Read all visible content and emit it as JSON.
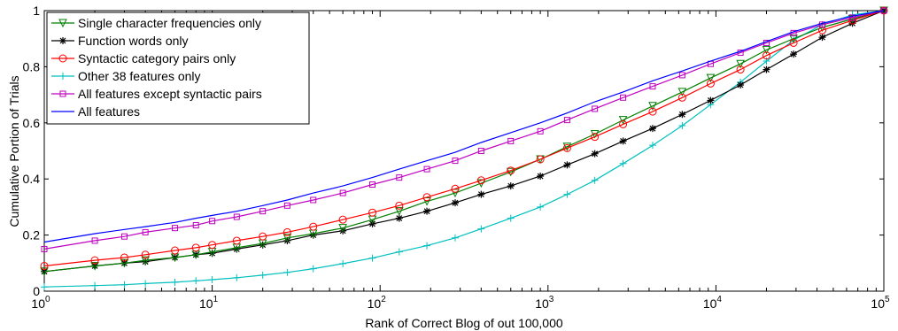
{
  "chart_data": {
    "type": "line",
    "title": "",
    "xlabel": "Rank of Correct Blog of out 100,000",
    "ylabel": "Cumulative Portion of Trials",
    "xscale": "log",
    "xlim": [
      1,
      100000
    ],
    "ylim": [
      0,
      1
    ],
    "x_ticks": [
      {
        "base": "10",
        "exp": "0"
      },
      {
        "base": "10",
        "exp": "1"
      },
      {
        "base": "10",
        "exp": "2"
      },
      {
        "base": "10",
        "exp": "3"
      },
      {
        "base": "10",
        "exp": "4"
      },
      {
        "base": "10",
        "exp": "5"
      }
    ],
    "y_ticks": [
      "0",
      "0.2",
      "0.4",
      "0.6",
      "0.8",
      "1"
    ],
    "grid": false,
    "legend_position": "top-left",
    "x": [
      1,
      2,
      3,
      4,
      6,
      8,
      10,
      14,
      20,
      28,
      40,
      60,
      90,
      130,
      190,
      280,
      400,
      600,
      900,
      1300,
      1900,
      2800,
      4200,
      6300,
      9300,
      14000,
      20000,
      29000,
      43000,
      65000,
      100000
    ],
    "series": [
      {
        "name": "Single character frequencies only",
        "color": "#007f00",
        "marker": "triangle-down",
        "values": [
          0.07,
          0.09,
          0.1,
          0.11,
          0.12,
          0.13,
          0.14,
          0.155,
          0.17,
          0.19,
          0.205,
          0.225,
          0.255,
          0.285,
          0.32,
          0.35,
          0.385,
          0.425,
          0.47,
          0.515,
          0.56,
          0.61,
          0.66,
          0.71,
          0.76,
          0.81,
          0.86,
          0.9,
          0.94,
          0.97,
          1.0
        ]
      },
      {
        "name": "Function words only",
        "color": "#000000",
        "marker": "star",
        "values": [
          0.07,
          0.09,
          0.1,
          0.105,
          0.12,
          0.13,
          0.135,
          0.15,
          0.165,
          0.18,
          0.2,
          0.215,
          0.24,
          0.26,
          0.285,
          0.315,
          0.345,
          0.375,
          0.41,
          0.45,
          0.49,
          0.535,
          0.58,
          0.63,
          0.68,
          0.735,
          0.79,
          0.845,
          0.905,
          0.955,
          1.0
        ]
      },
      {
        "name": "Syntactic category pairs only",
        "color": "#ff0000",
        "marker": "circle",
        "values": [
          0.09,
          0.11,
          0.12,
          0.13,
          0.145,
          0.155,
          0.165,
          0.18,
          0.195,
          0.21,
          0.23,
          0.255,
          0.28,
          0.305,
          0.335,
          0.365,
          0.395,
          0.43,
          0.47,
          0.51,
          0.55,
          0.595,
          0.64,
          0.69,
          0.74,
          0.79,
          0.84,
          0.885,
          0.93,
          0.965,
          1.0
        ]
      },
      {
        "name": "Other 38 features only",
        "color": "#00bfbf",
        "marker": "plus",
        "values": [
          0.015,
          0.02,
          0.023,
          0.027,
          0.032,
          0.037,
          0.041,
          0.048,
          0.057,
          0.067,
          0.08,
          0.098,
          0.118,
          0.14,
          0.162,
          0.19,
          0.222,
          0.26,
          0.3,
          0.345,
          0.395,
          0.455,
          0.52,
          0.59,
          0.665,
          0.745,
          0.82,
          0.895,
          0.95,
          0.985,
          1.0
        ]
      },
      {
        "name": "All features except syntactic pairs",
        "color": "#bf00bf",
        "marker": "square",
        "values": [
          0.15,
          0.18,
          0.195,
          0.21,
          0.225,
          0.235,
          0.25,
          0.265,
          0.285,
          0.305,
          0.325,
          0.35,
          0.38,
          0.405,
          0.435,
          0.465,
          0.5,
          0.535,
          0.57,
          0.61,
          0.65,
          0.69,
          0.73,
          0.77,
          0.81,
          0.85,
          0.885,
          0.92,
          0.95,
          0.975,
          1.0
        ]
      },
      {
        "name": "All features",
        "color": "#0000ff",
        "marker": "none",
        "values": [
          0.175,
          0.205,
          0.22,
          0.23,
          0.245,
          0.26,
          0.27,
          0.285,
          0.305,
          0.325,
          0.35,
          0.375,
          0.405,
          0.435,
          0.465,
          0.495,
          0.53,
          0.565,
          0.6,
          0.635,
          0.675,
          0.71,
          0.75,
          0.785,
          0.82,
          0.855,
          0.89,
          0.925,
          0.955,
          0.98,
          1.0
        ]
      }
    ]
  }
}
